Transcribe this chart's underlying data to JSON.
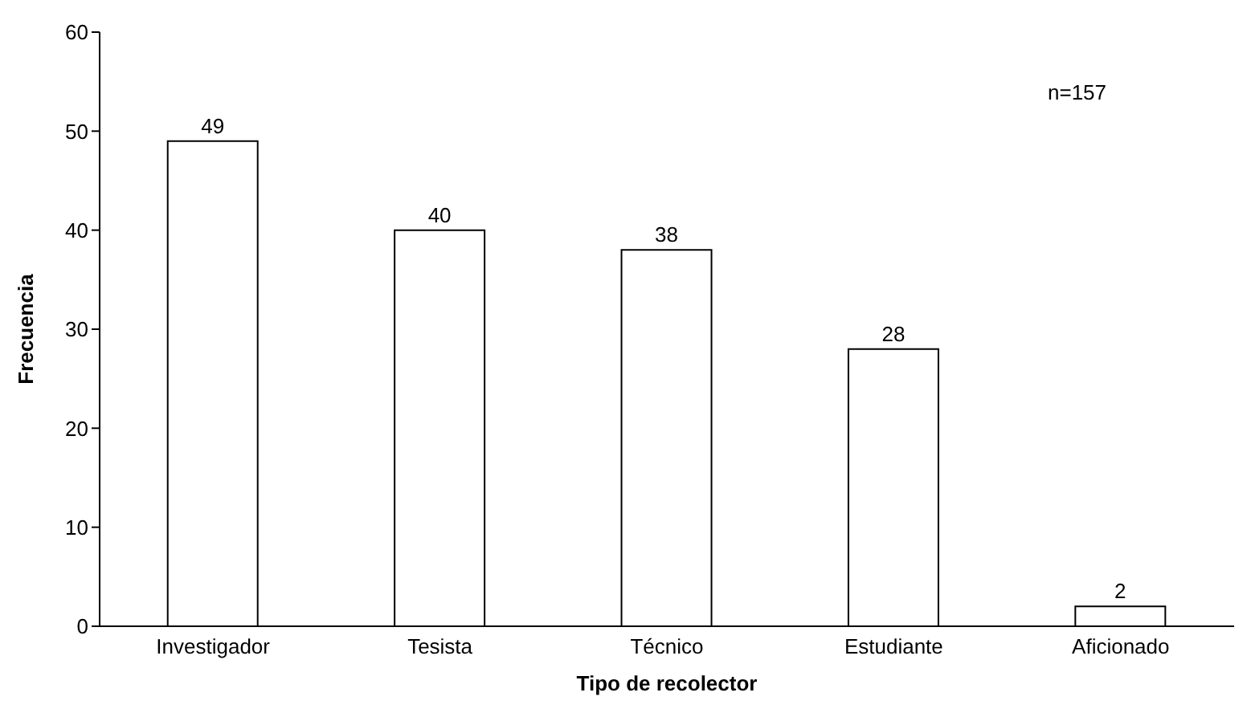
{
  "chart_data": {
    "type": "bar",
    "xlabel": "Tipo de recolector",
    "ylabel": "Frecuencia",
    "categories": [
      "Investigador",
      "Tesista",
      "Técnico",
      "Estudiante",
      "Aficionado"
    ],
    "series": [
      {
        "color": "#ffffff",
        "values": [
          49,
          40,
          38,
          28,
          2
        ]
      }
    ],
    "ylim": [
      0,
      60
    ],
    "yticks": [
      0,
      10,
      20,
      30,
      40,
      50,
      60
    ],
    "grid": false,
    "legend": false,
    "data_labels": true,
    "annotations": [
      "n=157"
    ]
  }
}
